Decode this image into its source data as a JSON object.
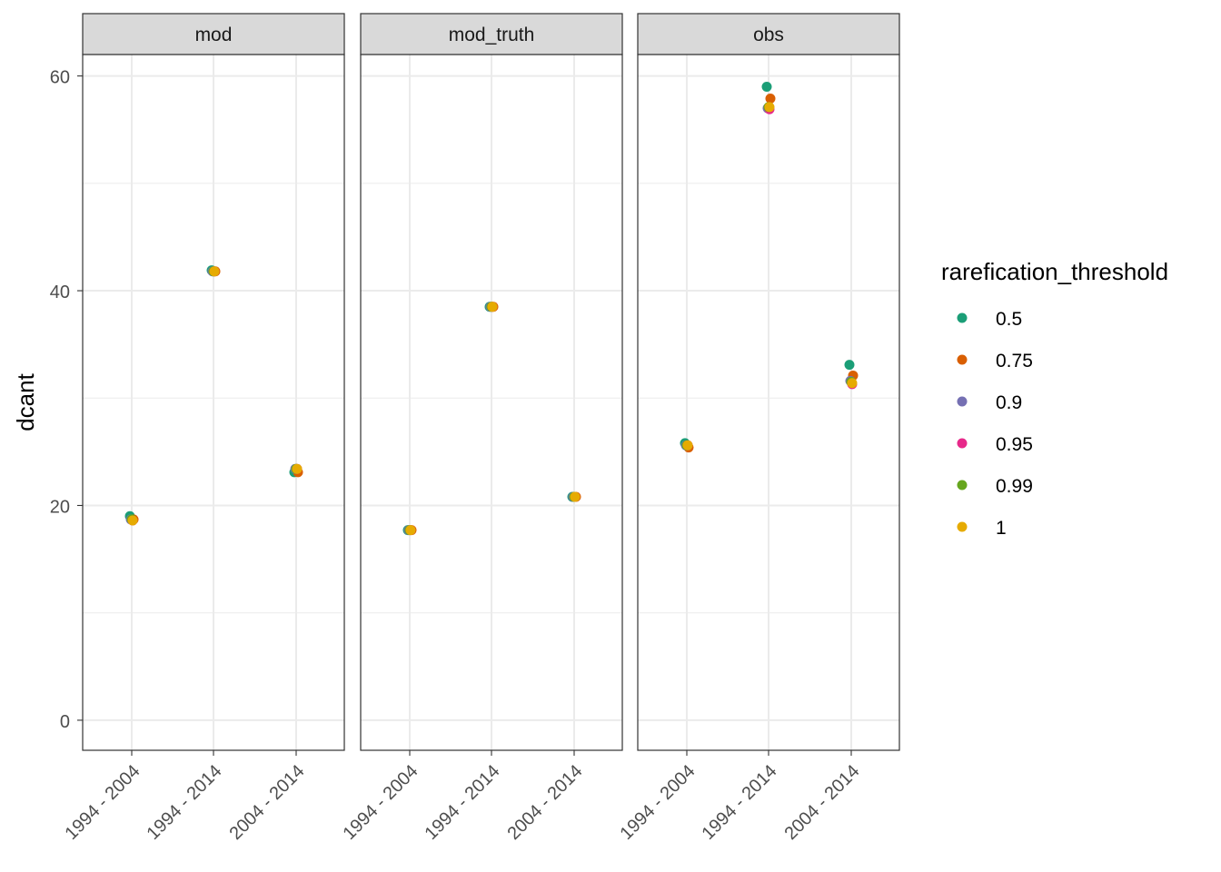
{
  "chart_data": {
    "type": "scatter",
    "xlabel": "",
    "ylabel": "dcant",
    "ylim": [
      -2.8,
      62
    ],
    "yticks": [
      0,
      20,
      40,
      60
    ],
    "categories": [
      "1994 - 2004",
      "1994 - 2014",
      "2004 - 2014"
    ],
    "facets": [
      "mod",
      "mod_truth",
      "obs"
    ],
    "grid": true,
    "legend": {
      "title": "rarefication_threshold",
      "position": "right",
      "entries": [
        "0.5",
        "0.75",
        "0.9",
        "0.95",
        "0.99",
        "1"
      ]
    },
    "colors": {
      "0.5": "#1B9E77",
      "0.75": "#D95F02",
      "0.9": "#7570B3",
      "0.95": "#E7298A",
      "0.99": "#66A61E",
      "1": "#E6AB02"
    },
    "series": [
      {
        "name": "0.5",
        "points": [
          {
            "facet": "mod",
            "x": "1994 - 2004",
            "y": 19.0
          },
          {
            "facet": "mod",
            "x": "1994 - 2014",
            "y": 41.9
          },
          {
            "facet": "mod",
            "x": "2004 - 2014",
            "y": 23.1
          },
          {
            "facet": "mod_truth",
            "x": "1994 - 2004",
            "y": 17.7
          },
          {
            "facet": "mod_truth",
            "x": "1994 - 2014",
            "y": 38.5
          },
          {
            "facet": "mod_truth",
            "x": "2004 - 2014",
            "y": 20.8
          },
          {
            "facet": "obs",
            "x": "1994 - 2004",
            "y": 25.8
          },
          {
            "facet": "obs",
            "x": "1994 - 2014",
            "y": 59.0
          },
          {
            "facet": "obs",
            "x": "2004 - 2014",
            "y": 33.1
          }
        ]
      },
      {
        "name": "0.75",
        "points": [
          {
            "facet": "mod",
            "x": "1994 - 2004",
            "y": 18.7
          },
          {
            "facet": "mod",
            "x": "1994 - 2014",
            "y": 41.8
          },
          {
            "facet": "mod",
            "x": "2004 - 2014",
            "y": 23.1
          },
          {
            "facet": "mod_truth",
            "x": "1994 - 2004",
            "y": 17.7
          },
          {
            "facet": "mod_truth",
            "x": "1994 - 2014",
            "y": 38.5
          },
          {
            "facet": "mod_truth",
            "x": "2004 - 2014",
            "y": 20.8
          },
          {
            "facet": "obs",
            "x": "1994 - 2004",
            "y": 25.4
          },
          {
            "facet": "obs",
            "x": "1994 - 2014",
            "y": 57.9
          },
          {
            "facet": "obs",
            "x": "2004 - 2014",
            "y": 32.1
          }
        ]
      },
      {
        "name": "0.9",
        "points": [
          {
            "facet": "mod",
            "x": "1994 - 2004",
            "y": 18.7
          },
          {
            "facet": "mod",
            "x": "1994 - 2014",
            "y": 41.8
          },
          {
            "facet": "mod",
            "x": "2004 - 2014",
            "y": 23.4
          },
          {
            "facet": "mod_truth",
            "x": "1994 - 2004",
            "y": 17.7
          },
          {
            "facet": "mod_truth",
            "x": "1994 - 2014",
            "y": 38.5
          },
          {
            "facet": "mod_truth",
            "x": "2004 - 2014",
            "y": 20.8
          },
          {
            "facet": "obs",
            "x": "1994 - 2004",
            "y": 25.6
          },
          {
            "facet": "obs",
            "x": "1994 - 2014",
            "y": 57.0
          },
          {
            "facet": "obs",
            "x": "2004 - 2014",
            "y": 31.6
          }
        ]
      },
      {
        "name": "0.95",
        "points": [
          {
            "facet": "mod",
            "x": "1994 - 2004",
            "y": 18.6
          },
          {
            "facet": "mod",
            "x": "1994 - 2014",
            "y": 41.8
          },
          {
            "facet": "mod",
            "x": "2004 - 2014",
            "y": 23.4
          },
          {
            "facet": "mod_truth",
            "x": "1994 - 2004",
            "y": 17.7
          },
          {
            "facet": "mod_truth",
            "x": "1994 - 2014",
            "y": 38.5
          },
          {
            "facet": "mod_truth",
            "x": "2004 - 2014",
            "y": 20.8
          },
          {
            "facet": "obs",
            "x": "1994 - 2004",
            "y": 25.6
          },
          {
            "facet": "obs",
            "x": "1994 - 2014",
            "y": 56.9
          },
          {
            "facet": "obs",
            "x": "2004 - 2014",
            "y": 31.3
          }
        ]
      },
      {
        "name": "0.99",
        "points": [
          {
            "facet": "mod",
            "x": "1994 - 2004",
            "y": 18.7
          },
          {
            "facet": "mod",
            "x": "1994 - 2014",
            "y": 41.8
          },
          {
            "facet": "mod",
            "x": "2004 - 2014",
            "y": 23.4
          },
          {
            "facet": "mod_truth",
            "x": "1994 - 2004",
            "y": 17.7
          },
          {
            "facet": "mod_truth",
            "x": "1994 - 2014",
            "y": 38.5
          },
          {
            "facet": "mod_truth",
            "x": "2004 - 2014",
            "y": 20.8
          },
          {
            "facet": "obs",
            "x": "1994 - 2004",
            "y": 25.6
          },
          {
            "facet": "obs",
            "x": "1994 - 2014",
            "y": 57.1
          },
          {
            "facet": "obs",
            "x": "2004 - 2014",
            "y": 31.5
          }
        ]
      },
      {
        "name": "1",
        "points": [
          {
            "facet": "mod",
            "x": "1994 - 2004",
            "y": 18.6
          },
          {
            "facet": "mod",
            "x": "1994 - 2014",
            "y": 41.8
          },
          {
            "facet": "mod",
            "x": "2004 - 2014",
            "y": 23.4
          },
          {
            "facet": "mod_truth",
            "x": "1994 - 2004",
            "y": 17.7
          },
          {
            "facet": "mod_truth",
            "x": "1994 - 2014",
            "y": 38.5
          },
          {
            "facet": "mod_truth",
            "x": "2004 - 2014",
            "y": 20.8
          },
          {
            "facet": "obs",
            "x": "1994 - 2004",
            "y": 25.6
          },
          {
            "facet": "obs",
            "x": "1994 - 2014",
            "y": 57.1
          },
          {
            "facet": "obs",
            "x": "2004 - 2014",
            "y": 31.4
          }
        ]
      }
    ]
  }
}
